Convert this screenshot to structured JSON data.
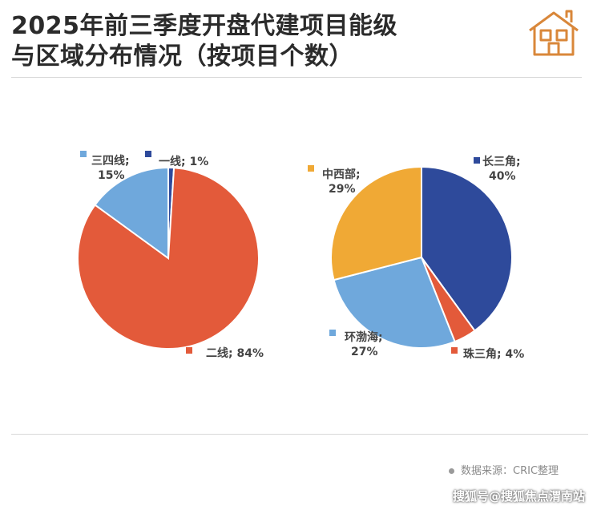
{
  "title": {
    "line1": "2025年前三季度开盘代建项目能级",
    "line2": "与区域分布情况（按项目个数）"
  },
  "source": "数据来源：CRIC整理",
  "credit": "搜狐号@搜狐焦点渭南站",
  "chart_data": [
    {
      "type": "pie",
      "slices": [
        {
          "label": "一线; 1%",
          "value": 1,
          "color": "#2e4a9b"
        },
        {
          "label": "二线; 84%",
          "value": 84,
          "color": "#e35a3a"
        },
        {
          "label": "三四线; 15%",
          "value": 15,
          "color": "#6fa8dc"
        }
      ]
    },
    {
      "type": "pie",
      "slices": [
        {
          "label": "长三角; 40%",
          "value": 40,
          "color": "#2e4a9b"
        },
        {
          "label": "珠三角; 4%",
          "value": 4,
          "color": "#e35a3a"
        },
        {
          "label": "环渤海; 27%",
          "value": 27,
          "color": "#6fa8dc"
        },
        {
          "label": "中西部; 29%",
          "value": 29,
          "color": "#f0a935"
        }
      ]
    }
  ]
}
